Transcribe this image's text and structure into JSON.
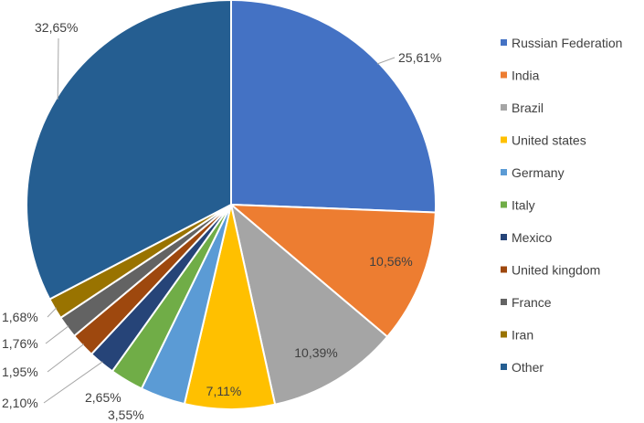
{
  "chart_data": {
    "type": "pie",
    "title": "",
    "legend_position": "right",
    "slices": [
      {
        "label": "Russian Federation",
        "value": 25.61,
        "display": "25,61%",
        "color": "#4472C4"
      },
      {
        "label": "India",
        "value": 10.56,
        "display": "10,56%",
        "color": "#ED7D31"
      },
      {
        "label": "Brazil",
        "value": 10.39,
        "display": "10,39%",
        "color": "#A5A5A5"
      },
      {
        "label": "United states",
        "value": 7.11,
        "display": "7,11%",
        "color": "#FFC000"
      },
      {
        "label": "Germany",
        "value": 3.55,
        "display": "3,55%",
        "color": "#5B9BD5"
      },
      {
        "label": "Italy",
        "value": 2.65,
        "display": "2,65%",
        "color": "#70AD47"
      },
      {
        "label": "Mexico",
        "value": 2.1,
        "display": "2,10%",
        "color": "#264478"
      },
      {
        "label": "United kingdom",
        "value": 1.95,
        "display": "1,95%",
        "color": "#9E480E"
      },
      {
        "label": "France",
        "value": 1.76,
        "display": "1,76%",
        "color": "#636363"
      },
      {
        "label": "Iran",
        "value": 1.68,
        "display": "1,68%",
        "color": "#997300"
      },
      {
        "label": "Other",
        "value": 32.65,
        "display": "32,65%",
        "color": "#255E91"
      }
    ]
  }
}
